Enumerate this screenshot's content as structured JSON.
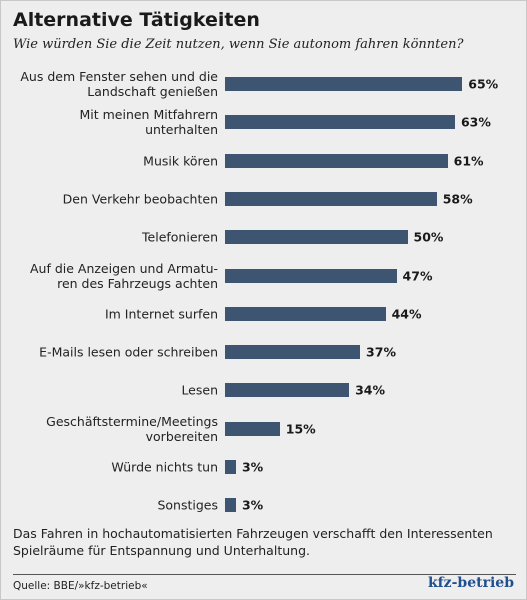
{
  "chart_data": {
    "type": "bar",
    "orientation": "horizontal",
    "title": "Alternative Tätigkeiten",
    "subtitle": "Wie würden Sie die Zeit nutzen, wenn Sie autonom fahren könnten?",
    "categories": [
      "Aus dem Fenster sehen und die\nLandschaft genießen",
      "Mit meinen Mitfahrern\nunterhalten",
      "Musik kören",
      "Den Verkehr beobachten",
      "Telefonieren",
      "Auf die Anzeigen und Armatu-\nren des Fahrzeugs achten",
      "Im Internet surfen",
      "E-Mails lesen oder schreiben",
      "Lesen",
      "Geschäftstermine/Meetings\nvorbereiten",
      "Würde nichts tun",
      "Sonstiges"
    ],
    "values": [
      65,
      63,
      61,
      58,
      50,
      47,
      44,
      37,
      34,
      15,
      3,
      3
    ],
    "value_labels": [
      "65%",
      "63%",
      "61%",
      "58%",
      "50%",
      "47%",
      "44%",
      "37%",
      "34%",
      "15%",
      "3%",
      "3%"
    ],
    "color": "#3e5571",
    "note": "Das Fahren in hochautomatisierten Fahrzeugen verschafft den Interessenten Spielräume für Entspannung und Unterhaltung.",
    "source": "Quelle: BBE/»kfz-betrieb«",
    "logo": "kfz-betrieb"
  }
}
